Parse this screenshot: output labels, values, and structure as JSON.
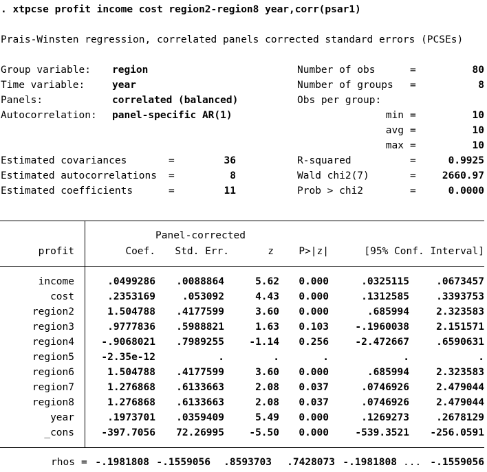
{
  "command": ". xtpcse profit income cost region2-region8 year,corr(psar1)",
  "title": "Prais-Winsten regression, correlated panels corrected standard errors (PCSEs)",
  "info_left": [
    {
      "label": "Group variable:",
      "value": "region"
    },
    {
      "label": "Time variable:",
      "value": "year"
    },
    {
      "label": "Panels:",
      "value": "correlated (balanced)"
    },
    {
      "label": "Autocorrelation:",
      "value": "panel-specific AR(1)"
    }
  ],
  "info_right": [
    {
      "label": "Number of obs",
      "eq": "=",
      "value": "80"
    },
    {
      "label": "Number of groups",
      "eq": "=",
      "value": "8"
    },
    {
      "label": "Obs per group:",
      "eq": "",
      "value": ""
    },
    {
      "label": "min",
      "eq": "=",
      "value": "10"
    },
    {
      "label": "avg",
      "eq": "=",
      "value": "10"
    },
    {
      "label": "max",
      "eq": "=",
      "value": "10"
    }
  ],
  "estimates": [
    {
      "label": "Estimated covariances",
      "eq": "=",
      "value": "36"
    },
    {
      "label": "Estimated autocorrelations",
      "eq": "=",
      "value": "8"
    },
    {
      "label": "Estimated coefficients",
      "eq": "=",
      "value": "11"
    }
  ],
  "stats_right": [
    {
      "label": "R-squared",
      "eq": "=",
      "value": "0.9925"
    },
    {
      "label": "Wald chi2(7)",
      "eq": "=",
      "value": "2660.97"
    },
    {
      "label": "Prob > chi2",
      "eq": "=",
      "value": "0.0000"
    }
  ],
  "table": {
    "super_header": "Panel-corrected",
    "dep_var": "profit",
    "headers": [
      "Coef.",
      "Std. Err.",
      "z",
      "P>|z|",
      "[95% Conf. Interval]"
    ],
    "rows": [
      {
        "var": "income",
        "vals": [
          ".0499286",
          ".0088864",
          "5.62",
          "0.000",
          ".0325115",
          ".0673457"
        ]
      },
      {
        "var": "cost",
        "vals": [
          ".2353169",
          ".053092",
          "4.43",
          "0.000",
          ".1312585",
          ".3393753"
        ]
      },
      {
        "var": "region2",
        "vals": [
          "1.504788",
          ".4177599",
          "3.60",
          "0.000",
          ".685994",
          "2.323583"
        ]
      },
      {
        "var": "region3",
        "vals": [
          ".9777836",
          ".5988821",
          "1.63",
          "0.103",
          "-.1960038",
          "2.151571"
        ]
      },
      {
        "var": "region4",
        "vals": [
          "-.9068021",
          ".7989255",
          "-1.14",
          "0.256",
          "-2.472667",
          ".6590631"
        ]
      },
      {
        "var": "region5",
        "vals": [
          "-2.35e-12",
          ".",
          ".",
          ".",
          ".",
          "."
        ]
      },
      {
        "var": "region6",
        "vals": [
          "1.504788",
          ".4177599",
          "3.60",
          "0.000",
          ".685994",
          "2.323583"
        ]
      },
      {
        "var": "region7",
        "vals": [
          "1.276868",
          ".6133663",
          "2.08",
          "0.037",
          ".0746926",
          "2.479044"
        ]
      },
      {
        "var": "region8",
        "vals": [
          "1.276868",
          ".6133663",
          "2.08",
          "0.037",
          ".0746926",
          "2.479044"
        ]
      },
      {
        "var": "year",
        "vals": [
          ".1973701",
          ".0359409",
          "5.49",
          "0.000",
          ".1269273",
          ".2678129"
        ]
      },
      {
        "var": "_cons",
        "vals": [
          "-397.7056",
          "72.26995",
          "-5.50",
          "0.000",
          "-539.3521",
          "-256.0591"
        ]
      }
    ]
  },
  "rhos": {
    "label": "rhos",
    "eq": "=",
    "values": [
      "-.1981808",
      "-.1559056",
      ".8593703",
      ".7428073",
      "-.1981808"
    ],
    "ellipsis": "...",
    "last": "-.1559056"
  }
}
